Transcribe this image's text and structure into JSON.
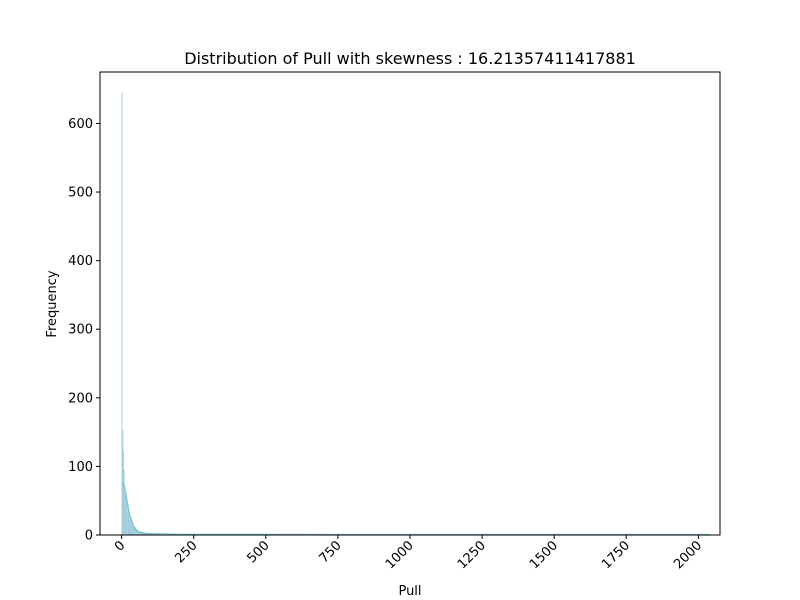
{
  "chart_data": {
    "type": "bar",
    "title": "Distribution of Pull with skewness : 16.21357411417881",
    "xlabel": "Pull",
    "ylabel": "Frequency",
    "xlim": [
      -75,
      2075
    ],
    "ylim": [
      0,
      675
    ],
    "xticks": [
      0,
      250,
      500,
      750,
      1000,
      1250,
      1500,
      1750,
      2000
    ],
    "yticks": [
      0,
      100,
      200,
      300,
      400,
      500,
      600
    ],
    "xtick_rotation": 45,
    "grid": false,
    "bar_color": "#add8e6",
    "kde_color": "#7ec8d8",
    "bin_width": 2.5,
    "histogram": {
      "x": [
        1.25,
        3.75,
        6.25,
        8.75,
        11.25,
        13.75,
        16.25,
        18.75,
        21.25,
        23.75,
        26.25,
        28.75,
        31.25,
        33.75,
        36.25,
        38.75,
        41.25,
        43.75,
        46.25,
        48.75,
        51.25,
        53.75,
        56.25,
        58.75,
        61.25,
        63.75,
        66.25,
        68.75,
        71.25,
        73.75,
        76.25,
        78.75,
        81.25,
        83.75,
        86.25,
        88.75,
        91.25,
        93.75,
        96.25,
        98.75,
        105,
        115,
        130,
        150,
        180,
        220,
        300,
        420,
        600,
        850,
        1200,
        1600,
        2000
      ],
      "values": [
        645,
        152,
        122,
        95,
        72,
        55,
        48,
        42,
        35,
        30,
        26,
        22,
        20,
        18,
        16,
        14,
        12,
        11,
        10,
        9,
        8,
        7,
        6,
        5,
        5,
        4,
        4,
        3,
        3,
        3,
        2,
        2,
        2,
        2,
        1,
        1,
        1,
        1,
        1,
        1,
        1,
        1,
        1,
        1,
        1,
        1,
        1,
        1,
        1,
        1,
        1,
        1,
        1
      ]
    },
    "kde": {
      "x": [
        0,
        5,
        10,
        15,
        20,
        25,
        30,
        40,
        50,
        60,
        80,
        100,
        150,
        200,
        300,
        500,
        750,
        1000,
        1250,
        1500,
        1750,
        2000,
        2040
      ],
      "values": [
        73,
        75,
        69,
        58,
        46,
        35,
        26,
        14,
        7.5,
        4.5,
        2.5,
        1.8,
        1.2,
        0.9,
        0.7,
        0.6,
        0.5,
        0.5,
        0.5,
        0.5,
        0.5,
        0.4,
        0.3
      ]
    }
  }
}
